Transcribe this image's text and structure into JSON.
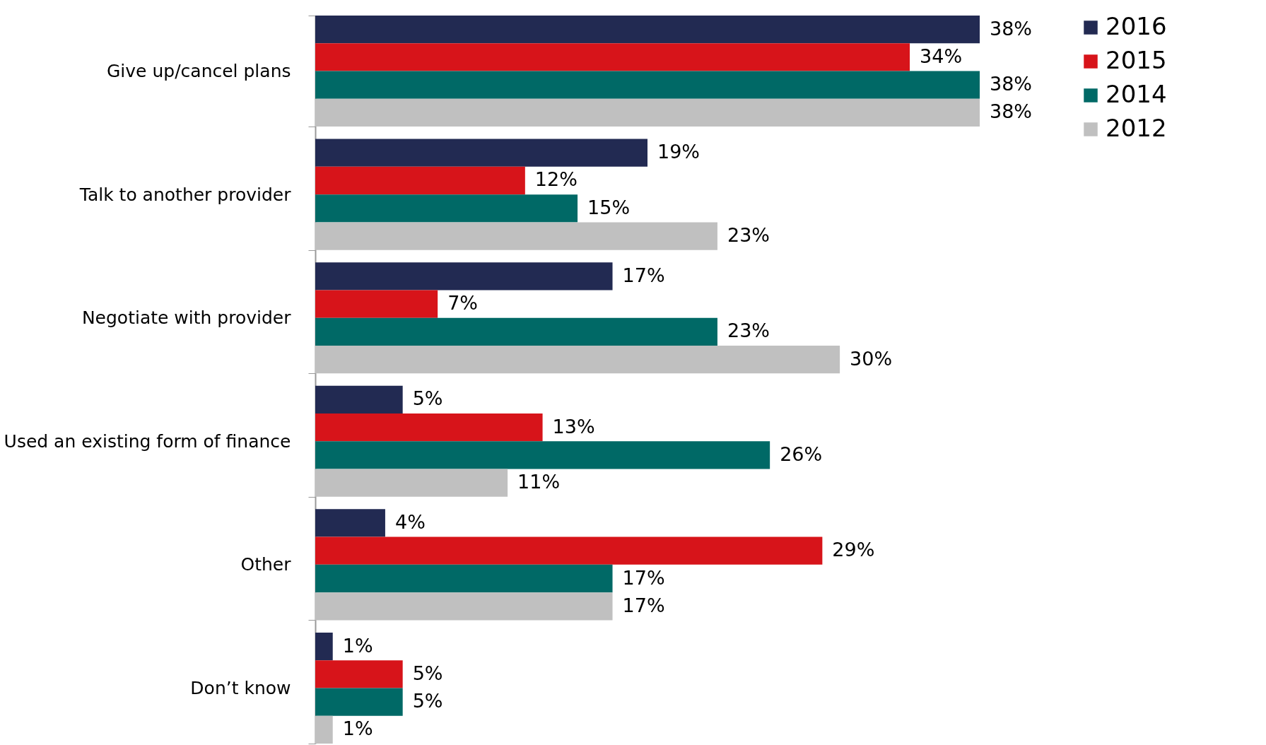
{
  "chart_data": {
    "type": "bar",
    "orientation": "horizontal",
    "legend": "top right",
    "grid": false,
    "tick_labels": "y",
    "categories": [
      "Give up/cancel plans",
      "Talk to another provider",
      "Negotiate with provider",
      "Used an existing form of finance",
      "Other",
      "Don’t know"
    ],
    "series": [
      {
        "name": "2016",
        "color": "#222a52",
        "values": [
          38,
          19,
          17,
          5,
          4,
          1
        ],
        "value_labels": [
          "38%",
          "19%",
          "17%",
          "5%",
          "4%",
          "1%"
        ]
      },
      {
        "name": "2015",
        "color": "#d7141a",
        "values": [
          34,
          12,
          7,
          13,
          29,
          5
        ],
        "value_labels": [
          "34%",
          "12%",
          "7%",
          "13%",
          "29%",
          "5%"
        ]
      },
      {
        "name": "2014",
        "color": "#006966",
        "values": [
          38,
          15,
          23,
          26,
          17,
          5
        ],
        "value_labels": [
          "38%",
          "15%",
          "23%",
          "26%",
          "17%",
          "5%"
        ]
      },
      {
        "name": "2012",
        "color": "#c0c0c0",
        "values": [
          38,
          23,
          30,
          11,
          17,
          1
        ],
        "value_labels": [
          "38%",
          "23%",
          "30%",
          "11%",
          "17%",
          "1%"
        ]
      }
    ]
  }
}
